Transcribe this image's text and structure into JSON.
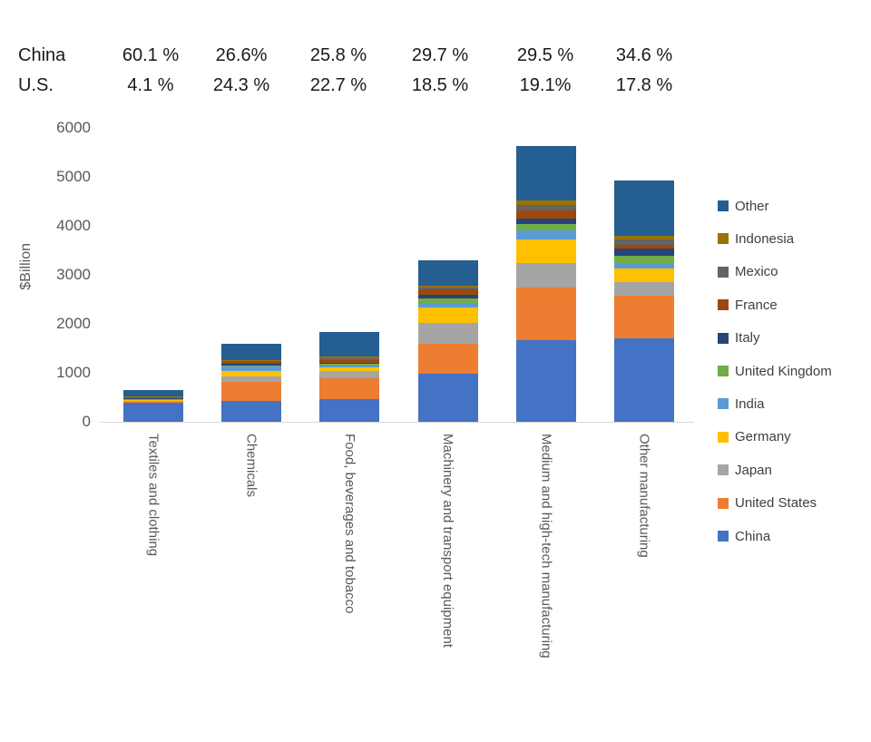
{
  "annotations": {
    "rows": [
      {
        "label": "China",
        "values": [
          "60.1 %",
          "26.6%",
          "25.8 %",
          "29.7 %",
          "29.5 %",
          "34.6 %"
        ]
      },
      {
        "label": "U.S.",
        "values": [
          "4.1 %",
          "24.3 %",
          "22.7 %",
          "18.5 %",
          "19.1%",
          "17.8 %"
        ]
      }
    ]
  },
  "chart_data": {
    "type": "bar",
    "stacked": true,
    "title": "",
    "ylabel": "$Billion",
    "ylim": [
      0,
      6000
    ],
    "yticks": [
      0,
      1000,
      2000,
      3000,
      4000,
      5000,
      6000
    ],
    "grid": false,
    "legend_position": "right",
    "categories": [
      "Textiles and clothing",
      "Chemicals",
      "Food, beverages and tobacco",
      "Machinery and transport equipment",
      "Medium and high-tech manufacturing",
      "Other manufacturing"
    ],
    "approx_category_totals": [
      650,
      1600,
      1830,
      3300,
      5620,
      4930
    ],
    "series": [
      {
        "name": "China",
        "color": "#4472C4",
        "values": [
          391,
          426,
          472,
          980,
          1660,
          1705
        ]
      },
      {
        "name": "United States",
        "color": "#ED7D31",
        "values": [
          27,
          389,
          415,
          610,
          1073,
          878
        ]
      },
      {
        "name": "Japan",
        "color": "#A5A5A5",
        "values": [
          10,
          120,
          150,
          420,
          510,
          265
        ]
      },
      {
        "name": "Germany",
        "color": "#FFC000",
        "values": [
          8,
          110,
          70,
          330,
          480,
          280
        ]
      },
      {
        "name": "India",
        "color": "#5B9BD5",
        "values": [
          25,
          85,
          40,
          80,
          185,
          100
        ]
      },
      {
        "name": "United Kingdom",
        "color": "#70AD47",
        "values": [
          4,
          25,
          30,
          90,
          120,
          160
        ]
      },
      {
        "name": "Italy",
        "color": "#264478",
        "values": [
          20,
          30,
          35,
          75,
          120,
          140
        ]
      },
      {
        "name": "France",
        "color": "#9E480E",
        "values": [
          8,
          40,
          45,
          110,
          160,
          85
        ]
      },
      {
        "name": "Mexico",
        "color": "#636363",
        "values": [
          8,
          20,
          35,
          45,
          120,
          100
        ]
      },
      {
        "name": "Indonesia",
        "color": "#997300",
        "values": [
          15,
          20,
          50,
          40,
          90,
          85
        ]
      },
      {
        "name": "Other",
        "color": "#255E91",
        "values": [
          134,
          335,
          488,
          520,
          1105,
          1130
        ]
      }
    ],
    "legend_order_top_to_bottom": [
      "Other",
      "Indonesia",
      "Mexico",
      "France",
      "Italy",
      "United Kingdom",
      "India",
      "Germany",
      "Japan",
      "United States",
      "China"
    ]
  },
  "colors": {
    "axis_text": "#595959",
    "axis_line": "#d9d9d9",
    "annotation_text": "#1a1a1a",
    "legend_text": "#404040"
  }
}
